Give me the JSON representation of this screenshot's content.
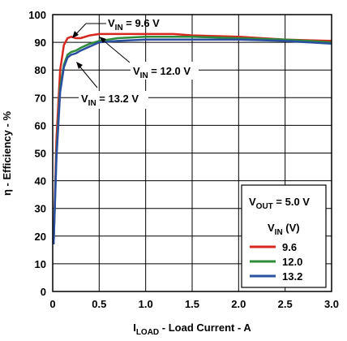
{
  "chart_data": {
    "type": "line",
    "xlabel": {
      "main": "I",
      "sub": "LOAD",
      "rest": " - Load Current - A"
    },
    "ylabel": "η - Efficiency - %",
    "xlim": [
      0,
      3.0
    ],
    "ylim": [
      0,
      100
    ],
    "xticks": [
      "0",
      "0.5",
      "1.0",
      "1.5",
      "2.0",
      "2.5",
      "3.0"
    ],
    "yticks": [
      "0",
      "10",
      "20",
      "30",
      "40",
      "50",
      "60",
      "70",
      "80",
      "90",
      "100"
    ],
    "grid": true,
    "series": [
      {
        "name": "9.6",
        "color": "#d7261e",
        "x": [
          0.01,
          0.04,
          0.08,
          0.12,
          0.16,
          0.2,
          0.25,
          0.3,
          0.4,
          0.5,
          0.7,
          1.0,
          1.3,
          1.5,
          2.0,
          2.5,
          3.0
        ],
        "y": [
          17,
          55,
          80,
          89,
          91.5,
          92,
          91.5,
          91.5,
          92.5,
          93,
          93,
          93,
          93,
          92.5,
          92,
          91,
          90.5
        ]
      },
      {
        "name": "12.0",
        "color": "#2e8b3a",
        "x": [
          0.01,
          0.04,
          0.08,
          0.12,
          0.16,
          0.2,
          0.25,
          0.3,
          0.4,
          0.5,
          0.7,
          1.0,
          1.3,
          1.5,
          2.0,
          2.5,
          3.0
        ],
        "y": [
          17,
          50,
          74,
          82,
          85.5,
          86.5,
          87,
          88,
          89.5,
          90.5,
          91.5,
          92,
          92,
          92,
          91.5,
          91,
          90
        ]
      },
      {
        "name": "13.2",
        "color": "#2a4fa0",
        "x": [
          0.01,
          0.04,
          0.08,
          0.12,
          0.16,
          0.2,
          0.25,
          0.3,
          0.4,
          0.5,
          0.7,
          1.0,
          1.3,
          1.5,
          2.0,
          2.5,
          3.0
        ],
        "y": [
          17,
          48,
          72,
          81,
          84.5,
          85.5,
          86,
          87,
          88.5,
          90,
          90.5,
          91,
          91,
          91,
          91,
          90.5,
          89.5
        ]
      }
    ],
    "annotations": [
      {
        "main": "V",
        "sub": "IN",
        "rest": " = 9.6 V"
      },
      {
        "main": "V",
        "sub": "IN",
        "rest": " = 12.0 V"
      },
      {
        "main": "V",
        "sub": "IN",
        "rest": " = 13.2 V"
      }
    ],
    "legend": {
      "placement": "bottom-right",
      "vout": {
        "main": "V",
        "sub": "OUT",
        "rest": " = 5.0 V"
      },
      "vin_title": {
        "main": "V",
        "sub": "IN",
        "rest": " (V)"
      }
    }
  }
}
